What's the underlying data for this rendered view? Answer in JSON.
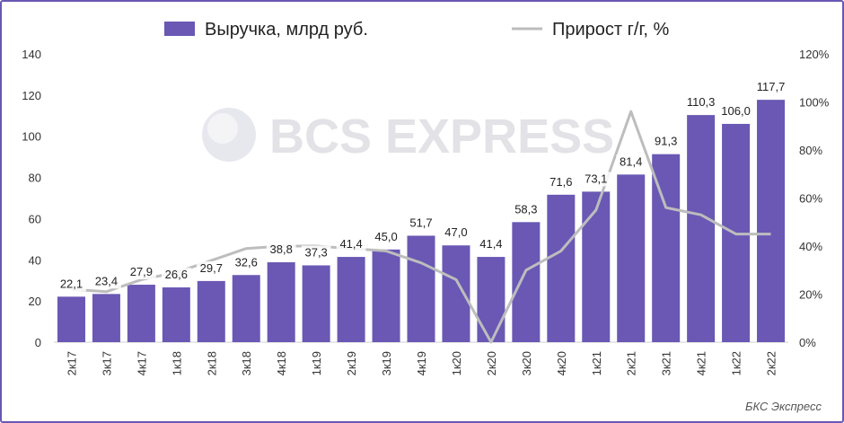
{
  "chart_data": {
    "type": "bar",
    "categories": [
      "2к17",
      "3к17",
      "4к17",
      "1к18",
      "2к18",
      "3к18",
      "4к18",
      "1к19",
      "2к19",
      "3к19",
      "4к19",
      "1к20",
      "2к20",
      "3к20",
      "4к20",
      "1к21",
      "2к21",
      "3к21",
      "4к21",
      "1к22",
      "2к22"
    ],
    "series": [
      {
        "name": "Выручка, млрд руб.",
        "type": "bar",
        "axis": "left",
        "color": "#6a58b4",
        "values": [
          22.1,
          23.4,
          27.9,
          26.6,
          29.7,
          32.6,
          38.8,
          37.3,
          41.4,
          45.0,
          51.7,
          47.0,
          41.4,
          58.3,
          71.6,
          73.1,
          81.4,
          91.3,
          110.3,
          106.0,
          117.7
        ],
        "labels": [
          "22,1",
          "23,4",
          "27,9",
          "26,6",
          "29,7",
          "32,6",
          "38,8",
          "37,3",
          "41,4",
          "45,0",
          "51,7",
          "47,0",
          "41,4",
          "58,3",
          "71,6",
          "73,1",
          "81,4",
          "91,3",
          "110,3",
          "106,0",
          "117,7"
        ]
      },
      {
        "name": "Прирост г/г, %",
        "type": "line",
        "axis": "right",
        "color": "#bdbdbd",
        "values": [
          22,
          21,
          26,
          29,
          34,
          39,
          40,
          40,
          39,
          38,
          33,
          26,
          0,
          30,
          38,
          55,
          96,
          56,
          53,
          45,
          45
        ]
      }
    ],
    "left_ticks": [
      "0",
      "20",
      "40",
      "60",
      "80",
      "100",
      "120",
      "140"
    ],
    "right_ticks": [
      "0%",
      "20%",
      "40%",
      "60%",
      "80%",
      "100%",
      "120%"
    ],
    "ylim": [
      0,
      140
    ],
    "y2lim": [
      0,
      120
    ],
    "legend_position": "top-center",
    "watermark": "BCS EXPRESS",
    "source": "БКС Экспресс"
  }
}
